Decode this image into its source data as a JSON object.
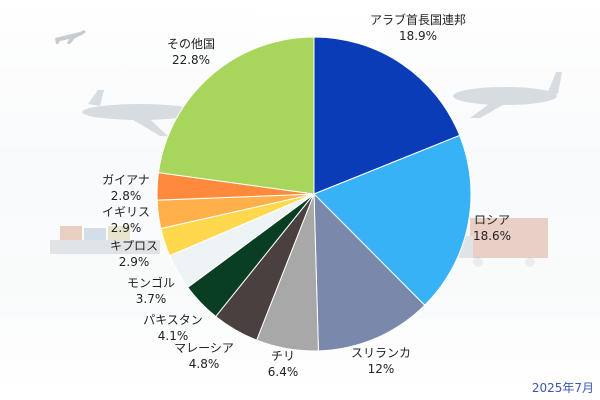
{
  "chart_data": {
    "type": "pie",
    "start_angle_deg": 0,
    "direction": "clockwise",
    "slices": [
      {
        "label": "アラブ首長国連邦",
        "value": 18.9,
        "value_label": "18.9%",
        "color": "#0a3cb8"
      },
      {
        "label": "ロシア",
        "value": 18.6,
        "value_label": "18.6%",
        "color": "#38b2f6"
      },
      {
        "label": "スリランカ",
        "value": 12,
        "value_label": "12%",
        "color": "#7a88ac"
      },
      {
        "label": "チリ",
        "value": 6.4,
        "value_label": "6.4%",
        "color": "#a8a8a8"
      },
      {
        "label": "マレーシア",
        "value": 4.8,
        "value_label": "4.8%",
        "color": "#4a4040"
      },
      {
        "label": "パキスタン",
        "value": 4.1,
        "value_label": "4.1%",
        "color": "#0a3e22"
      },
      {
        "label": "モンゴル",
        "value": 3.7,
        "value_label": "3.7%",
        "color": "#eef3f6"
      },
      {
        "label": "キプロス",
        "value": 2.9,
        "value_label": "2.9%",
        "color": "#ffd84e"
      },
      {
        "label": "イギリス",
        "value": 2.9,
        "value_label": "2.9%",
        "color": "#ffb04a"
      },
      {
        "label": "ガイアナ",
        "value": 2.8,
        "value_label": "2.8%",
        "color": "#ff8a3c"
      },
      {
        "label": "その他国",
        "value": 22.8,
        "value_label": "22.8%",
        "color": "#a8d65c"
      }
    ],
    "legend": "none",
    "annotation": "2025年7月"
  }
}
